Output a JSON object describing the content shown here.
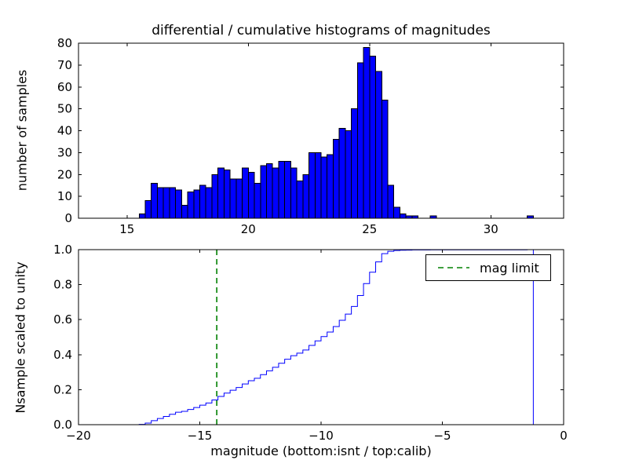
{
  "figure": {
    "background": "#ffffff",
    "axis_color": "#000000"
  },
  "chart_data": [
    {
      "type": "bar",
      "subtype": "differential-histogram",
      "title": "differential / cumulative histograms of magnitudes",
      "xlabel": "",
      "ylabel": "number of samples",
      "xlim": [
        13,
        33
      ],
      "ylim": [
        0,
        80
      ],
      "xticks": [
        15,
        20,
        25,
        30
      ],
      "xtick_labels": [
        "15",
        "20",
        "25",
        "30"
      ],
      "yticks": [
        0,
        10,
        20,
        30,
        40,
        50,
        60,
        70,
        80
      ],
      "ytick_labels": [
        "0",
        "10",
        "20",
        "30",
        "40",
        "50",
        "60",
        "70",
        "80"
      ],
      "grid": false,
      "bin_start": 15.5,
      "bin_width": 0.25,
      "counts": [
        2,
        8,
        16,
        14,
        14,
        14,
        13,
        6,
        12,
        13,
        15,
        14,
        20,
        23,
        22,
        18,
        18,
        23,
        21,
        16,
        24,
        25,
        23,
        26,
        26,
        23,
        17,
        20,
        30,
        30,
        28,
        29,
        36,
        41,
        40,
        50,
        71,
        78,
        74,
        67,
        54,
        15,
        5,
        2,
        1,
        1,
        0,
        0,
        1,
        0,
        0,
        0,
        0,
        0,
        0,
        0,
        0,
        0,
        0,
        0,
        0,
        0,
        0,
        0,
        1
      ],
      "bar_color": "#0000ff",
      "bar_edge_color": "#000000"
    },
    {
      "type": "line",
      "subtype": "cumulative-step-histogram",
      "title": "",
      "xlabel": "magnitude (bottom:isnt / top:calib)",
      "ylabel": "Nsample scaled to unity",
      "xlim": [
        -20,
        0
      ],
      "ylim": [
        0,
        1
      ],
      "xticks": [
        -20,
        -15,
        -10,
        -5,
        0
      ],
      "xtick_labels": [
        "−20",
        "−15",
        "−10",
        "−5",
        "0"
      ],
      "yticks": [
        0,
        0.2,
        0.4,
        0.6,
        0.8,
        1.0
      ],
      "ytick_labels": [
        "0.0",
        "0.2",
        "0.4",
        "0.6",
        "0.8",
        "1.0"
      ],
      "grid": false,
      "line_color": "#0000ff",
      "cumulative": {
        "x_start": -17.5,
        "bin_width": 0.25,
        "counts_ref": 0,
        "normalized": true
      },
      "mag_limit_line": {
        "x": -14.3,
        "color": "#008000",
        "linestyle": "dashed"
      },
      "legend": {
        "position": "upper right",
        "entries": [
          {
            "label": "mag limit",
            "color": "#008000",
            "linestyle": "dashed"
          }
        ]
      }
    }
  ]
}
